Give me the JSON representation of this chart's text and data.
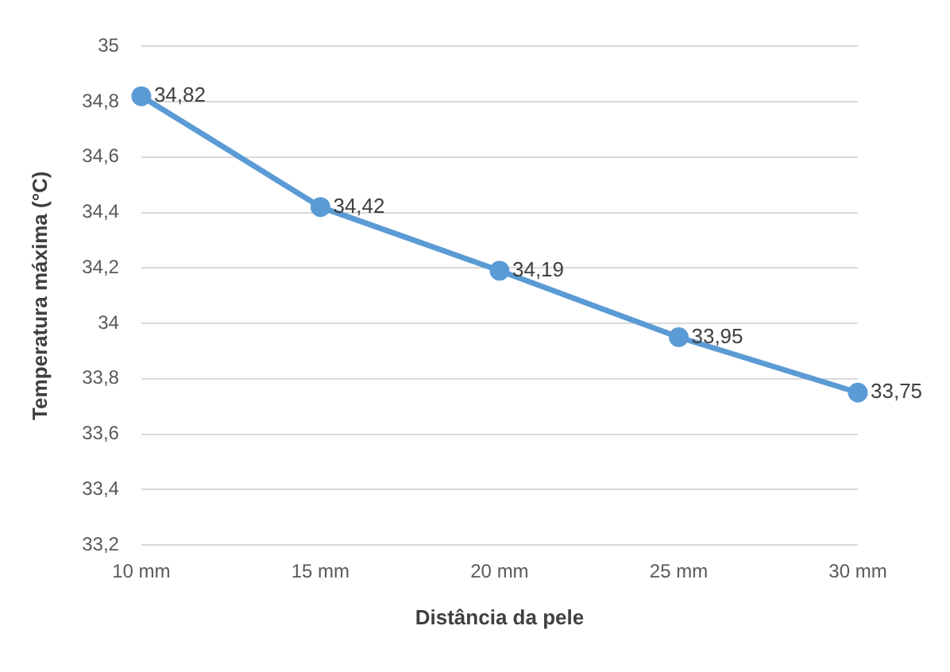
{
  "chart_data": {
    "type": "line",
    "xlabel": "Distância da pele",
    "ylabel": "Temperatura máxima (°C)",
    "categories": [
      "10 mm",
      "15 mm",
      "20 mm",
      "25 mm",
      "30 mm"
    ],
    "series": [
      {
        "color": "#5b9bd5",
        "values": [
          34.82,
          34.42,
          34.19,
          33.95,
          33.75
        ],
        "value_labels": [
          "34,82",
          "34,42",
          "34,19",
          "33,95",
          "33,75"
        ]
      }
    ],
    "ylim": [
      33.2,
      35
    ],
    "yticks": [
      {
        "value": 33.2,
        "label": "33,2"
      },
      {
        "value": 33.4,
        "label": "33,4"
      },
      {
        "value": 33.6,
        "label": "33,6"
      },
      {
        "value": 33.8,
        "label": "33,8"
      },
      {
        "value": 34,
        "label": "34"
      },
      {
        "value": 34.2,
        "label": "34,2"
      },
      {
        "value": 34.4,
        "label": "34,4"
      },
      {
        "value": 34.6,
        "label": "34,6"
      },
      {
        "value": 34.8,
        "label": "34,8"
      },
      {
        "value": 35,
        "label": "35"
      }
    ],
    "grid": "y",
    "legend": false,
    "marker": "circle",
    "line_style": "solid"
  }
}
